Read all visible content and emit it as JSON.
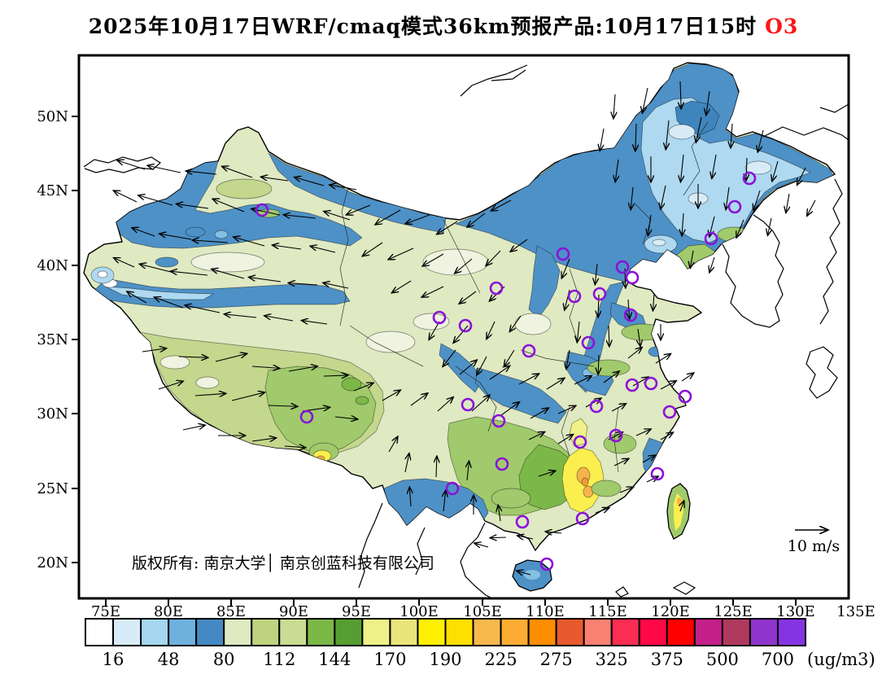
{
  "title": {
    "text": "2025年10月17日WRF/cmaq模式36km预报产品:10月17日15时",
    "pollutant": "O3",
    "pollutant_color": "#fe1418"
  },
  "map": {
    "copyright": "版权所有: 南京大学│ 南京创蓝科技有限公司",
    "wind_legend": {
      "label": "10 m/s"
    },
    "y_axis": {
      "labels": [
        "50N",
        "45N",
        "40N",
        "35N",
        "30N",
        "25N",
        "20N"
      ],
      "y": [
        143,
        234,
        326,
        417,
        508,
        600,
        691
      ]
    },
    "x_axis": {
      "labels": [
        "75E",
        "80E",
        "85E",
        "90E",
        "95E",
        "100E",
        "105E",
        "110E",
        "115E",
        "120E",
        "125E",
        "130E",
        "135E"
      ],
      "x": [
        130,
        207,
        284,
        361,
        438,
        515,
        593,
        670,
        747,
        824,
        901,
        978,
        1052
      ]
    },
    "cities": [
      [
        322,
        258
      ],
      [
        921,
        219
      ],
      [
        903,
        254
      ],
      [
        874,
        293
      ],
      [
        692,
        312
      ],
      [
        765,
        328
      ],
      [
        777,
        341
      ],
      [
        610,
        354
      ],
      [
        737,
        361
      ],
      [
        706,
        364
      ],
      [
        775,
        387
      ],
      [
        540,
        390
      ],
      [
        572,
        400
      ],
      [
        723,
        421
      ],
      [
        650,
        431
      ],
      [
        777,
        473
      ],
      [
        800,
        471
      ],
      [
        842,
        487
      ],
      [
        823,
        506
      ],
      [
        733,
        499
      ],
      [
        575,
        497
      ],
      [
        613,
        517
      ],
      [
        713,
        543
      ],
      [
        757,
        535
      ],
      [
        617,
        570
      ],
      [
        556,
        600
      ],
      [
        642,
        641
      ],
      [
        716,
        637
      ],
      [
        672,
        693
      ],
      [
        808,
        582
      ],
      [
        377,
        512
      ]
    ],
    "wind_vectors": [
      [
        178,
        208,
        198,
        36
      ],
      [
        222,
        212,
        192,
        42
      ],
      [
        266,
        214,
        186,
        38
      ],
      [
        310,
        218,
        200,
        40
      ],
      [
        354,
        222,
        188,
        34
      ],
      [
        398,
        228,
        196,
        38
      ],
      [
        438,
        233,
        190,
        34
      ],
      [
        168,
        248,
        206,
        32
      ],
      [
        212,
        252,
        196,
        44
      ],
      [
        256,
        256,
        188,
        40
      ],
      [
        300,
        260,
        202,
        42
      ],
      [
        344,
        264,
        192,
        36
      ],
      [
        388,
        268,
        186,
        40
      ],
      [
        430,
        270,
        198,
        34
      ],
      [
        190,
        290,
        200,
        30
      ],
      [
        235,
        294,
        190,
        40
      ],
      [
        280,
        298,
        184,
        44
      ],
      [
        325,
        302,
        196,
        40
      ],
      [
        370,
        306,
        188,
        36
      ],
      [
        412,
        310,
        194,
        32
      ],
      [
        165,
        328,
        204,
        28
      ],
      [
        210,
        334,
        194,
        40
      ],
      [
        255,
        338,
        186,
        46
      ],
      [
        300,
        342,
        196,
        42
      ],
      [
        345,
        346,
        188,
        40
      ],
      [
        390,
        350,
        184,
        36
      ],
      [
        428,
        354,
        192,
        32
      ],
      [
        180,
        372,
        210,
        28
      ],
      [
        225,
        378,
        200,
        38
      ],
      [
        270,
        384,
        192,
        44
      ],
      [
        315,
        390,
        186,
        40
      ],
      [
        360,
        394,
        190,
        36
      ],
      [
        402,
        398,
        188,
        32
      ],
      [
        455,
        252,
        158,
        32
      ],
      [
        492,
        258,
        150,
        36
      ],
      [
        528,
        264,
        160,
        32
      ],
      [
        562,
        272,
        148,
        30
      ],
      [
        596,
        262,
        142,
        28
      ],
      [
        628,
        246,
        152,
        28
      ],
      [
        470,
        298,
        146,
        30
      ],
      [
        508,
        305,
        156,
        34
      ],
      [
        545,
        312,
        150,
        30
      ],
      [
        580,
        318,
        140,
        28
      ],
      [
        615,
        308,
        134,
        26
      ],
      [
        648,
        294,
        144,
        26
      ],
      [
        505,
        345,
        148,
        28
      ],
      [
        545,
        352,
        154,
        30
      ],
      [
        585,
        358,
        144,
        26
      ],
      [
        620,
        352,
        136,
        26
      ],
      [
        540,
        395,
        120,
        26
      ],
      [
        575,
        400,
        130,
        28
      ],
      [
        608,
        395,
        115,
        24
      ],
      [
        640,
        388,
        125,
        24
      ],
      [
        560,
        430,
        128,
        26
      ],
      [
        598,
        438,
        118,
        26
      ],
      [
        632,
        430,
        122,
        24
      ],
      [
        756,
        116,
        94,
        30
      ],
      [
        796,
        108,
        102,
        32
      ],
      [
        836,
        100,
        88,
        34
      ],
      [
        872,
        112,
        98,
        30
      ],
      [
        742,
        158,
        100,
        28
      ],
      [
        782,
        152,
        92,
        34
      ],
      [
        822,
        148,
        96,
        36
      ],
      [
        862,
        144,
        102,
        32
      ],
      [
        900,
        152,
        94,
        30
      ],
      [
        938,
        160,
        104,
        28
      ],
      [
        760,
        196,
        98,
        28
      ],
      [
        800,
        192,
        90,
        32
      ],
      [
        840,
        190,
        96,
        34
      ],
      [
        880,
        190,
        100,
        30
      ],
      [
        918,
        194,
        92,
        28
      ],
      [
        956,
        198,
        106,
        26
      ],
      [
        990,
        206,
        116,
        24
      ],
      [
        778,
        230,
        96,
        28
      ],
      [
        818,
        228,
        102,
        30
      ],
      [
        858,
        226,
        90,
        30
      ],
      [
        896,
        230,
        98,
        28
      ],
      [
        934,
        234,
        108,
        26
      ],
      [
        970,
        238,
        100,
        24
      ],
      [
        1002,
        246,
        118,
        22
      ],
      [
        800,
        264,
        98,
        26
      ],
      [
        840,
        262,
        94,
        28
      ],
      [
        878,
        266,
        104,
        26
      ],
      [
        914,
        270,
        112,
        24
      ],
      [
        948,
        268,
        102,
        22
      ],
      [
        852,
        308,
        100,
        22
      ],
      [
        878,
        316,
        108,
        20
      ],
      [
        700,
        318,
        112,
        26
      ],
      [
        734,
        324,
        96,
        26
      ],
      [
        768,
        330,
        88,
        24
      ],
      [
        700,
        356,
        104,
        26
      ],
      [
        736,
        362,
        92,
        28
      ],
      [
        772,
        368,
        86,
        24
      ],
      [
        804,
        360,
        94,
        22
      ],
      [
        712,
        395,
        96,
        26
      ],
      [
        748,
        400,
        88,
        26
      ],
      [
        784,
        404,
        82,
        22
      ],
      [
        812,
        398,
        90,
        20
      ],
      [
        700,
        430,
        100,
        24
      ],
      [
        736,
        436,
        92,
        24
      ],
      [
        772,
        440,
        -38,
        22
      ],
      [
        806,
        446,
        -32,
        22
      ],
      [
        742,
        470,
        -36,
        24
      ],
      [
        778,
        474,
        -30,
        22
      ],
      [
        812,
        478,
        -28,
        22
      ],
      [
        838,
        468,
        -34,
        18
      ],
      [
        565,
        460,
        -40,
        28
      ],
      [
        602,
        466,
        -34,
        30
      ],
      [
        638,
        472,
        -28,
        28
      ],
      [
        672,
        478,
        -32,
        26
      ],
      [
        706,
        472,
        -26,
        24
      ],
      [
        580,
        505,
        -42,
        30
      ],
      [
        616,
        510,
        -36,
        28
      ],
      [
        652,
        514,
        -30,
        26
      ],
      [
        686,
        508,
        -24,
        24
      ],
      [
        720,
        500,
        -30,
        22
      ],
      [
        752,
        505,
        -28,
        20
      ],
      [
        175,
        432,
        -8,
        30
      ],
      [
        220,
        438,
        2,
        36
      ],
      [
        265,
        444,
        -14,
        40
      ],
      [
        310,
        450,
        4,
        34
      ],
      [
        355,
        456,
        -10,
        36
      ],
      [
        398,
        462,
        -2,
        30
      ],
      [
        195,
        478,
        -18,
        32
      ],
      [
        240,
        486,
        -4,
        38
      ],
      [
        285,
        492,
        -14,
        42
      ],
      [
        330,
        498,
        2,
        36
      ],
      [
        372,
        505,
        -8,
        34
      ],
      [
        412,
        512,
        6,
        28
      ],
      [
        225,
        528,
        -12,
        28
      ],
      [
        268,
        535,
        0,
        34
      ],
      [
        310,
        542,
        -8,
        30
      ],
      [
        350,
        548,
        4,
        26
      ],
      [
        435,
        480,
        -22,
        26
      ],
      [
        470,
        492,
        -30,
        26
      ],
      [
        505,
        498,
        -36,
        26
      ],
      [
        538,
        505,
        -42,
        26
      ],
      [
        498,
        580,
        -78,
        24
      ],
      [
        536,
        586,
        -88,
        26
      ],
      [
        574,
        590,
        -84,
        24
      ],
      [
        505,
        622,
        -94,
        24
      ],
      [
        545,
        628,
        -84,
        26
      ],
      [
        582,
        632,
        -90,
        24
      ],
      [
        615,
        640,
        -98,
        20
      ],
      [
        478,
        555,
        -60,
        22
      ],
      [
        650,
        540,
        -26,
        22
      ],
      [
        686,
        545,
        -32,
        22
      ],
      [
        748,
        540,
        -28,
        20
      ],
      [
        782,
        535,
        -24,
        20
      ],
      [
        812,
        540,
        -30,
        18
      ],
      [
        662,
        585,
        -18,
        22
      ],
      [
        755,
        572,
        -26,
        20
      ],
      [
        790,
        568,
        -30,
        18
      ],
      [
        762,
        605,
        -22,
        18
      ],
      [
        795,
        592,
        -26,
        16
      ],
      [
        732,
        630,
        -20,
        18
      ],
      [
        690,
        655,
        186,
        20
      ],
      [
        655,
        662,
        192,
        20
      ],
      [
        622,
        660,
        178,
        20
      ],
      [
        600,
        672,
        196,
        18
      ],
      [
        652,
        706,
        196,
        18
      ],
      [
        836,
        628,
        -70,
        14
      ]
    ]
  },
  "colorbar": {
    "colors": [
      "#ffffff",
      "#d8ecf8",
      "#a5d7f0",
      "#6fb1dd",
      "#4589c4",
      "#dfe9c2",
      "#bdd37e",
      "#c8dc92",
      "#7cb847",
      "#569e31",
      "#eef186",
      "#e9e57b",
      "#fdf000",
      "#ffdf00",
      "#f7b94e",
      "#fcac32",
      "#ff8d00",
      "#e8592d",
      "#fa8072",
      "#fb2d52",
      "#ff0845",
      "#fe0000",
      "#c32189",
      "#b03a5e",
      "#8f35cd",
      "#8633e3"
    ],
    "tick_labels": [
      "16",
      "48",
      "80",
      "112",
      "144",
      "170",
      "190",
      "225",
      "275",
      "325",
      "375",
      "500",
      "700"
    ],
    "units": "(ug/m3)"
  },
  "palette": {
    "base": "#dfe9c2",
    "cream": "#eff3df",
    "olive": "#c3d78d",
    "green_mid": "#a0ca6c",
    "green": "#7cb847",
    "green_dark": "#569e31",
    "blue": "#4e91c6",
    "blue_dark": "#3f85bd",
    "blue_mid": "#85bfe4",
    "blue_light": "#aed9f0",
    "blue_pale": "#d8ecf8",
    "yellow_pale": "#f0f188",
    "yellow": "#fbee4f",
    "orange_light": "#f6b44c",
    "orange": "#f49a35",
    "red": "#fe1418",
    "marker": "#8a12d8"
  }
}
